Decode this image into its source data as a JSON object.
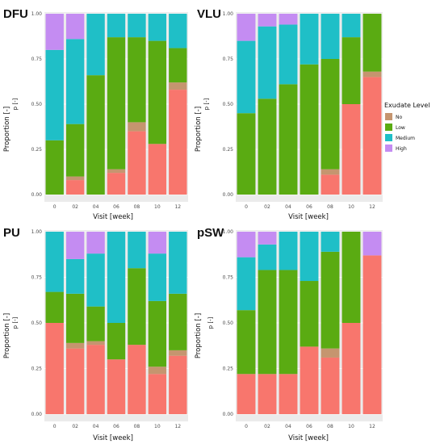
{
  "colors": {
    "No": "#c5956f",
    "Low": "#5aab12",
    "Medium": "#1fbfc7",
    "High": "#c48cf2",
    "Healed": "#f8766d",
    "panel_bg": "#ebebeb"
  },
  "legend": {
    "title": "Exudate Level",
    "items": [
      {
        "label": "No",
        "color_key": "No"
      },
      {
        "label": "Low",
        "color_key": "Low"
      },
      {
        "label": "Medium",
        "color_key": "Medium"
      },
      {
        "label": "High",
        "color_key": "High"
      }
    ]
  },
  "chart_data": [
    {
      "type": "bar",
      "title": "DFU",
      "xlabel": "Visit [week]",
      "ylabel": "Proportion [-]",
      "ylabel2": "p [-]",
      "ylim": [
        0,
        1
      ],
      "yticks": [
        "0.00",
        "0.25",
        "0.50",
        "0.75",
        "1.00"
      ],
      "categories": [
        "0",
        "02",
        "04",
        "06",
        "08",
        "10",
        "12"
      ],
      "series": [
        {
          "color_key": "Healed",
          "values": [
            0.0,
            0.08,
            0.0,
            0.12,
            0.35,
            0.28,
            0.58
          ]
        },
        {
          "color_key": "No",
          "values": [
            0.0,
            0.02,
            0.0,
            0.02,
            0.05,
            0.0,
            0.04
          ]
        },
        {
          "color_key": "Low",
          "values": [
            0.3,
            0.29,
            0.66,
            0.73,
            0.47,
            0.57,
            0.19
          ]
        },
        {
          "color_key": "Medium",
          "values": [
            0.5,
            0.47,
            0.34,
            0.13,
            0.13,
            0.15,
            0.19
          ]
        },
        {
          "color_key": "High",
          "values": [
            0.2,
            0.14,
            0.0,
            0.0,
            0.0,
            0.0,
            0.0
          ]
        }
      ]
    },
    {
      "type": "bar",
      "title": "VLU",
      "xlabel": "Visit [week]",
      "ylabel": "Proportion [-]",
      "ylabel2": "p [-]",
      "ylim": [
        0,
        1
      ],
      "yticks": [
        "0.00",
        "0.25",
        "0.50",
        "0.75",
        "1.00"
      ],
      "categories": [
        "0",
        "02",
        "04",
        "06",
        "08",
        "10",
        "12"
      ],
      "series": [
        {
          "color_key": "Healed",
          "values": [
            0.0,
            0.0,
            0.0,
            0.0,
            0.11,
            0.5,
            0.65
          ]
        },
        {
          "color_key": "No",
          "values": [
            0.0,
            0.0,
            0.0,
            0.0,
            0.03,
            0.0,
            0.03
          ]
        },
        {
          "color_key": "Low",
          "values": [
            0.45,
            0.53,
            0.61,
            0.72,
            0.61,
            0.37,
            0.32
          ]
        },
        {
          "color_key": "Medium",
          "values": [
            0.4,
            0.4,
            0.33,
            0.28,
            0.25,
            0.13,
            0.0
          ]
        },
        {
          "color_key": "High",
          "values": [
            0.15,
            0.07,
            0.06,
            0.0,
            0.0,
            0.0,
            0.0
          ]
        }
      ]
    },
    {
      "type": "bar",
      "title": "PU",
      "xlabel": "Visit [week]",
      "ylabel": "Proportion [-]",
      "ylabel2": "p [-]",
      "ylim": [
        0,
        1
      ],
      "yticks": [
        "0.00",
        "0.25",
        "0.50",
        "0.75",
        "1.00"
      ],
      "categories": [
        "0",
        "02",
        "04",
        "06",
        "08",
        "10",
        "12"
      ],
      "series": [
        {
          "color_key": "Healed",
          "values": [
            0.5,
            0.36,
            0.38,
            0.3,
            0.38,
            0.22,
            0.32
          ]
        },
        {
          "color_key": "No",
          "values": [
            0.0,
            0.03,
            0.02,
            0.0,
            0.0,
            0.04,
            0.03
          ]
        },
        {
          "color_key": "Low",
          "values": [
            0.17,
            0.27,
            0.19,
            0.2,
            0.42,
            0.36,
            0.31
          ]
        },
        {
          "color_key": "Medium",
          "values": [
            0.33,
            0.19,
            0.29,
            0.5,
            0.2,
            0.26,
            0.34
          ]
        },
        {
          "color_key": "High",
          "values": [
            0.0,
            0.15,
            0.12,
            0.0,
            0.0,
            0.12,
            0.0
          ]
        }
      ]
    },
    {
      "type": "bar",
      "title": "pSW",
      "xlabel": "Visit [week]",
      "ylabel": "Proportion [-]",
      "ylabel2": "p [-]",
      "ylim": [
        0,
        1
      ],
      "yticks": [
        "0.00",
        "0.25",
        "0.50",
        "0.75",
        "1.00"
      ],
      "categories": [
        "0",
        "02",
        "04",
        "06",
        "08",
        "10",
        "12"
      ],
      "series": [
        {
          "color_key": "Healed",
          "values": [
            0.22,
            0.22,
            0.22,
            0.37,
            0.31,
            0.5,
            0.87
          ]
        },
        {
          "color_key": "No",
          "values": [
            0.0,
            0.0,
            0.0,
            0.0,
            0.05,
            0.0,
            0.0
          ]
        },
        {
          "color_key": "Low",
          "values": [
            0.35,
            0.57,
            0.57,
            0.36,
            0.53,
            0.5,
            0.0
          ]
        },
        {
          "color_key": "Medium",
          "values": [
            0.29,
            0.14,
            0.21,
            0.27,
            0.11,
            0.0,
            0.0
          ]
        },
        {
          "color_key": "High",
          "values": [
            0.14,
            0.07,
            0.0,
            0.0,
            0.0,
            0.0,
            0.13
          ]
        }
      ]
    }
  ]
}
